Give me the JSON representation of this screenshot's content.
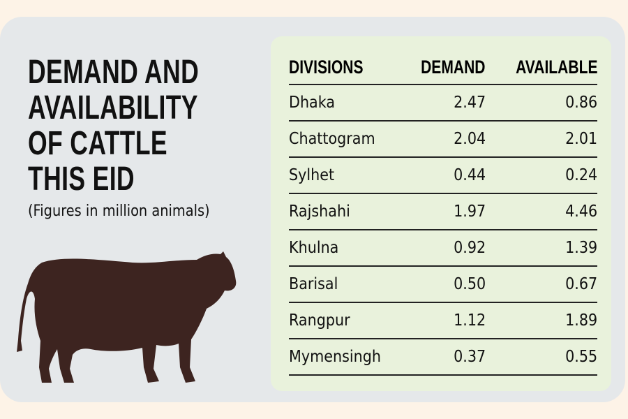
{
  "title_lines": [
    "DEMAND AND",
    "AVAILABILITY",
    "OF CATTLE",
    "THIS EID"
  ],
  "subtitle": "(Figures in million animals)",
  "colors": {
    "background": "#fdf3e7",
    "card": "#e5e8ea",
    "panel": "#e9f2dc",
    "cow": "#3d2420"
  },
  "chart_data": {
    "type": "table",
    "title": "DEMAND AND AVAILABILITY OF CATTLE THIS EID",
    "units": "million animals",
    "columns": [
      "DIVISIONS",
      "DEMAND",
      "AVAILABLE"
    ],
    "rows": [
      [
        "Dhaka",
        "2.47",
        "0.86"
      ],
      [
        "Chattogram",
        "2.04",
        "2.01"
      ],
      [
        "Sylhet",
        "0.44",
        "0.24"
      ],
      [
        "Rajshahi",
        "1.97",
        "4.46"
      ],
      [
        "Khulna",
        "0.92",
        "1.39"
      ],
      [
        "Barisal",
        "0.50",
        "0.67"
      ],
      [
        "Rangpur",
        "1.12",
        "1.89"
      ],
      [
        "Mymensingh",
        "0.37",
        "0.55"
      ]
    ]
  }
}
